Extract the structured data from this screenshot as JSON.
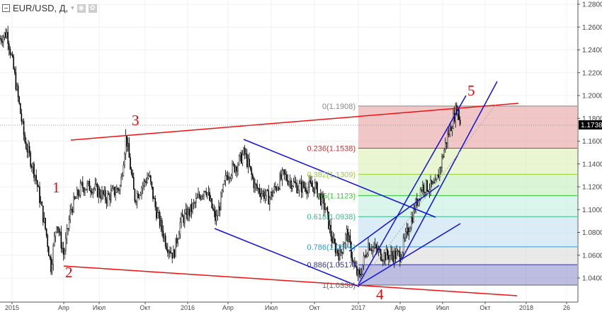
{
  "header": {
    "symbol_label": "EUR/USD, Д,",
    "dropdown_arrow": "▾",
    "eye_icon": "◉",
    "gear_icon": "✿"
  },
  "price_axis": {
    "labels": [
      "1.2800",
      "1.2600",
      "1.2400",
      "1.2200",
      "1.2000",
      "1.1800",
      "1.1600",
      "1.1400",
      "1.1200",
      "1.1000",
      "1.0800",
      "1.0600",
      "1.0400"
    ],
    "current_price": "1.1738"
  },
  "time_axis": {
    "labels": [
      "2015",
      "Апр",
      "Июл",
      "Окт",
      "2016",
      "Апр",
      "Июл",
      "Окт",
      "2017",
      "Апр",
      "Июл",
      "Окт",
      "2018",
      "26"
    ]
  },
  "fib_levels": [
    {
      "label": "0(1.1908)",
      "price": 1.1908,
      "color": "#888888",
      "fill": "#e8a8a8"
    },
    {
      "label": "0.236(1.1538)",
      "price": 1.1538,
      "color": "#cc3333",
      "fill": "#dff0b8"
    },
    {
      "label": "0.382(1.1309)",
      "price": 1.1309,
      "color": "#99cc33",
      "fill": "#c6f0c0"
    },
    {
      "label": "0.5(1.1123)",
      "price": 1.1123,
      "color": "#33cc33",
      "fill": "#c6f0e0"
    },
    {
      "label": "0.618(1.0938)",
      "price": 1.0938,
      "color": "#33bb88",
      "fill": "#c8e2f2"
    },
    {
      "label": "0.786(1.0674)",
      "price": 1.0674,
      "color": "#3399cc",
      "fill": "#dddddd"
    },
    {
      "label": "0.886(1.0517)",
      "price": 1.0517,
      "color": "#3333aa",
      "fill": "#9a9ad2"
    },
    {
      "label": "1(1.0338)",
      "price": 1.0338,
      "color": "#666666",
      "fill": null
    }
  ],
  "waves": [
    "1",
    "2",
    "3",
    "4",
    "5"
  ],
  "colors": {
    "trend_red": "#ee1111",
    "channel_blue": "#1111dd",
    "candle": "#000000",
    "price_tag_bg": "#000000"
  },
  "chart_data": {
    "type": "candlestick",
    "title": "EUR/USD, Д",
    "ylim": [
      1.02,
      1.285
    ],
    "x_ticks": [
      "2015",
      "Апр",
      "Июл",
      "Окт",
      "2016",
      "Апр",
      "Июл",
      "Окт",
      "2017",
      "Апр",
      "Июл",
      "Окт",
      "2018",
      "26"
    ],
    "approx_close_path": [
      [
        "2015-01",
        1.25
      ],
      [
        "2015-01",
        1.255
      ],
      [
        "2015-02",
        1.22
      ],
      [
        "2015-02",
        1.16
      ],
      [
        "2015-03",
        1.13
      ],
      [
        "2015-03",
        1.08
      ],
      [
        "2015-03",
        1.05
      ],
      [
        "2015-04",
        1.09
      ],
      [
        "2015-04",
        1.06
      ],
      [
        "2015-05",
        1.1
      ],
      [
        "2015-06",
        1.12
      ],
      [
        "2015-07",
        1.12
      ],
      [
        "2015-07",
        1.11
      ],
      [
        "2015-08",
        1.12
      ],
      [
        "2015-08",
        1.165
      ],
      [
        "2015-09",
        1.11
      ],
      [
        "2015-10",
        1.13
      ],
      [
        "2015-10",
        1.1
      ],
      [
        "2015-11",
        1.07
      ],
      [
        "2015-12",
        1.06
      ],
      [
        "2015-12",
        1.09
      ],
      [
        "2016-01",
        1.1
      ],
      [
        "2016-02",
        1.12
      ],
      [
        "2016-03",
        1.09
      ],
      [
        "2016-04",
        1.13
      ],
      [
        "2016-04",
        1.14
      ],
      [
        "2016-05",
        1.15
      ],
      [
        "2016-06",
        1.12
      ],
      [
        "2016-07",
        1.11
      ],
      [
        "2016-08",
        1.13
      ],
      [
        "2016-09",
        1.12
      ],
      [
        "2016-10",
        1.12
      ],
      [
        "2016-11",
        1.1
      ],
      [
        "2016-11",
        1.07
      ],
      [
        "2016-12",
        1.06
      ],
      [
        "2016-12",
        1.08
      ],
      [
        "2016-12",
        1.05
      ],
      [
        "2017-01",
        1.04
      ],
      [
        "2017-01",
        1.07
      ],
      [
        "2017-02",
        1.06
      ],
      [
        "2017-03",
        1.06
      ],
      [
        "2017-04",
        1.06
      ],
      [
        "2017-04",
        1.09
      ],
      [
        "2017-05",
        1.12
      ],
      [
        "2017-06",
        1.12
      ],
      [
        "2017-07",
        1.16
      ],
      [
        "2017-08",
        1.19
      ],
      [
        "2017-08",
        1.175
      ]
    ]
  }
}
